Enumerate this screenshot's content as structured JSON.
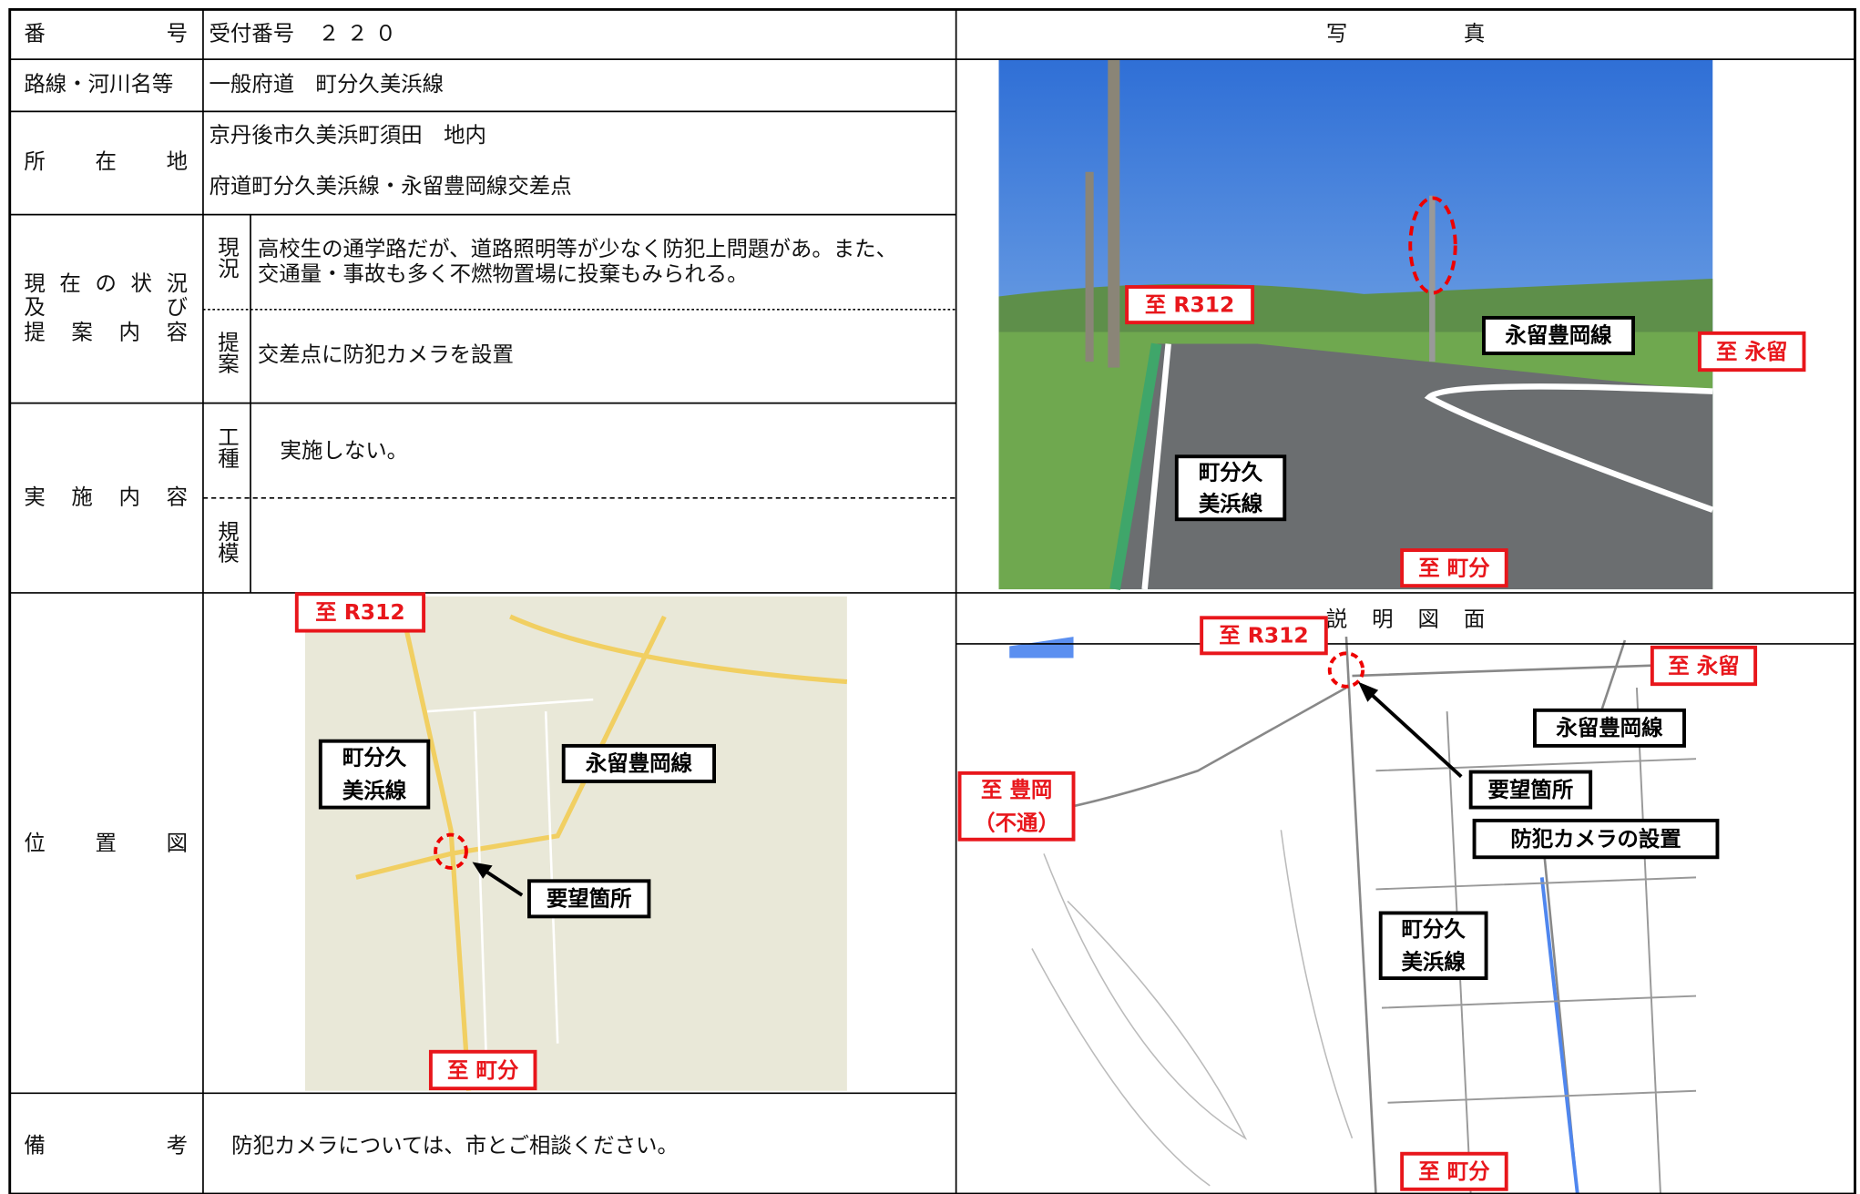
{
  "header": {
    "number_label": "番号",
    "number_prefix": "受付番号",
    "number_value": "２２０",
    "photo_title": "写真",
    "drawing_title": "説明図面"
  },
  "rows": {
    "route_label": "路線・河川名等",
    "route_value": "一般府道　町分久美浜線",
    "location_label": "所在地",
    "location_lines": [
      "京丹後市久美浜町須田　地内",
      "府道町分久美浜線・永留豊岡線交差点"
    ],
    "status_label": [
      "現在の状況",
      "及び",
      "提案内容"
    ],
    "current_label": "現況",
    "current_lines": [
      "高校生の通学路だが、道路照明等が少なく防犯上問題があ。また、",
      "交通量・事故も多く不燃物置場に投棄もみられる。"
    ],
    "proposal_label": "提案",
    "proposal_value": "交差点に防犯カメラを設置",
    "implementation_label": "実施内容",
    "work_label": "工種",
    "work_value": "実施しない。",
    "scale_label": "規模",
    "map_label": "位置図",
    "remarks_label": "備考",
    "remarks_value": "防犯カメラについては、市とご相談ください。"
  },
  "photo": {
    "annotations": [
      [
        "至 R312"
      ],
      [
        "永留豊岡線"
      ],
      [
        "至 永留"
      ],
      [
        "町分久",
        "美浜線"
      ],
      [
        "至 町分"
      ]
    ]
  },
  "location_map": {
    "annotations": [
      [
        "至 R312"
      ],
      [
        "町分久",
        "美浜線"
      ],
      [
        "永留豊岡線"
      ],
      [
        "要望箇所"
      ],
      [
        "至 町分"
      ]
    ]
  },
  "drawing": {
    "annotations": [
      [
        "至 R312"
      ],
      [
        "至 永留"
      ],
      [
        "永留豊岡線"
      ],
      [
        "要望箇所"
      ],
      [
        "防犯カメラの設置"
      ],
      [
        "至 豊岡",
        "（不通）"
      ],
      [
        "町分久",
        "美浜線"
      ],
      [
        "至 町分"
      ]
    ]
  }
}
